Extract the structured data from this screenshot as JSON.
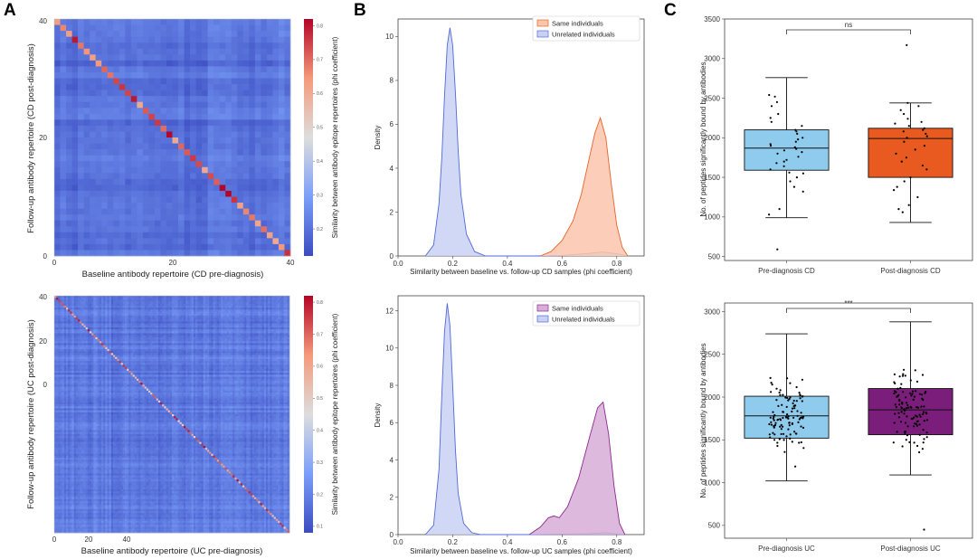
{
  "panels": {
    "a": "A",
    "b": "B",
    "c": "C"
  },
  "chart_data": [
    {
      "id": "A_top",
      "type": "heatmap",
      "size": 40,
      "xlabel": "Baseline antibody repertoire (CD pre-diagnosis)",
      "ylabel": "Follow-up antibody repertoire (CD post-diagnosis)",
      "xticks": [
        "0",
        "20",
        "40"
      ],
      "yticks": [
        "40",
        "20",
        "0"
      ],
      "colorbar_label": "Similarity between antibody epitope repertoires (phi coefficient)",
      "colorbar_ticks": [
        "0.8",
        "0.7",
        "0.6",
        "0.5",
        "0.4",
        "0.3",
        "0.2"
      ],
      "value_range": [
        0.12,
        0.82
      ],
      "diagonal_range": [
        0.6,
        0.82
      ],
      "offdiag_typical": 0.2
    },
    {
      "id": "A_bottom",
      "type": "heatmap",
      "size": 120,
      "xlabel": "Baseline antibody repertoire (UC pre-diagnosis)",
      "ylabel": "Follow-up antibody repertoire (UC post-diagnosis)",
      "xticks": [
        "0",
        "20",
        "40"
      ],
      "yticks": [
        "40",
        "20",
        "0"
      ],
      "colorbar_label": "Similarity between antibody epitope repertoires (phi coefficient)",
      "colorbar_ticks": [
        "0.8",
        "0.7",
        "0.6",
        "0.5",
        "0.4",
        "0.3",
        "0.2",
        "0.1"
      ],
      "value_range": [
        0.08,
        0.82
      ],
      "diagonal_range": [
        0.45,
        0.82
      ],
      "offdiag_typical": 0.18
    },
    {
      "id": "B_top",
      "type": "area",
      "xlabel": "Similarity between baseline vs. follow-up CD samples (phi coefficient)",
      "ylabel": "Density",
      "xlim": [
        0.0,
        0.9
      ],
      "ylim": [
        0,
        10.8
      ],
      "xticks": [
        "0.0",
        "0.2",
        "0.4",
        "0.6",
        "0.8"
      ],
      "yticks": [
        "0",
        "2",
        "4",
        "6",
        "8",
        "10"
      ],
      "series": [
        {
          "name": "Same individuals",
          "fill": "#fcc6ad",
          "line": "#e8622a",
          "x": [
            0.52,
            0.56,
            0.6,
            0.64,
            0.67,
            0.7,
            0.72,
            0.74,
            0.76,
            0.78,
            0.8,
            0.82,
            0.84
          ],
          "y": [
            0.0,
            0.2,
            0.7,
            1.6,
            2.8,
            4.5,
            5.6,
            6.3,
            5.4,
            3.3,
            1.4,
            0.4,
            0.0
          ]
        },
        {
          "name": "Unrelated individuals",
          "fill": "#c9d1f3",
          "line": "#5069d8",
          "x": [
            0.1,
            0.13,
            0.15,
            0.16,
            0.17,
            0.18,
            0.19,
            0.2,
            0.21,
            0.22,
            0.23,
            0.25,
            0.28,
            0.32,
            0.5,
            0.6,
            0.7,
            0.75,
            0.8,
            0.84
          ],
          "y": [
            0.0,
            0.5,
            2.4,
            4.5,
            7.3,
            9.6,
            10.4,
            9.6,
            7.4,
            4.8,
            2.8,
            1.0,
            0.2,
            0.0,
            0.0,
            0.02,
            0.12,
            0.18,
            0.1,
            0.0
          ]
        }
      ]
    },
    {
      "id": "B_bottom",
      "type": "area",
      "xlabel": "Similarity between baseline vs. follow-up UC samples (phi coefficient)",
      "ylabel": "Density",
      "xlim": [
        0.0,
        0.9
      ],
      "ylim": [
        0,
        12.8
      ],
      "xticks": [
        "0.0",
        "0.2",
        "0.4",
        "0.6",
        "0.8"
      ],
      "yticks": [
        "0",
        "2",
        "4",
        "6",
        "8",
        "10",
        "12"
      ],
      "series": [
        {
          "name": "Same individuals",
          "fill": "#d8add8",
          "line": "#8b2a8b",
          "x": [
            0.48,
            0.52,
            0.55,
            0.57,
            0.59,
            0.62,
            0.66,
            0.7,
            0.73,
            0.75,
            0.77,
            0.79,
            0.81,
            0.83
          ],
          "y": [
            0.0,
            0.4,
            0.9,
            1.0,
            0.9,
            1.5,
            3.0,
            5.2,
            6.8,
            7.1,
            5.4,
            2.6,
            0.6,
            0.0
          ]
        },
        {
          "name": "Unrelated individuals",
          "fill": "#c9d1f3",
          "line": "#5069d8",
          "x": [
            0.1,
            0.13,
            0.15,
            0.16,
            0.17,
            0.18,
            0.19,
            0.2,
            0.21,
            0.22,
            0.24,
            0.27,
            0.3,
            0.5,
            0.7,
            0.76,
            0.82
          ],
          "y": [
            0.0,
            0.5,
            3.5,
            7.5,
            10.9,
            12.4,
            11.2,
            8.0,
            4.5,
            2.2,
            0.6,
            0.1,
            0.0,
            0.0,
            0.05,
            0.1,
            0.0
          ]
        }
      ]
    },
    {
      "id": "C_top",
      "type": "box",
      "ylabel": "No. of peptides significantly bound by antibodies",
      "ylim": [
        450,
        3500
      ],
      "yticks": [
        "500",
        "1000",
        "1500",
        "2000",
        "2500",
        "3000",
        "3500"
      ],
      "significance": "ns",
      "groups": [
        {
          "label": "Pre-diagnosis CD",
          "color": "#8ecbec",
          "whisker_low": 990,
          "q1": 1590,
          "median": 1870,
          "q3": 2100,
          "whisker_high": 2760,
          "points": [
            590,
            1030,
            1100,
            1320,
            1380,
            1450,
            1500,
            1550,
            1560,
            1600,
            1640,
            1680,
            1700,
            1720,
            1760,
            1800,
            1820,
            1840,
            1860,
            1880,
            1900,
            1920,
            1950,
            1980,
            2000,
            2050,
            2080,
            2100,
            2150,
            2200,
            2250,
            2300,
            2400,
            2450,
            2520,
            2540
          ]
        },
        {
          "label": "Post-diagnosis CD",
          "color": "#e85a1f",
          "whisker_low": 930,
          "q1": 1500,
          "median": 1990,
          "q3": 2120,
          "whisker_high": 2440,
          "points": [
            1060,
            1100,
            1150,
            1250,
            1340,
            1380,
            1450,
            1500,
            1600,
            1650,
            1700,
            1750,
            1800,
            1850,
            1900,
            1950,
            2000,
            2020,
            2050,
            2080,
            2100,
            2120,
            2150,
            2180,
            2200,
            2240,
            2300,
            2350,
            2400,
            2440,
            3170
          ]
        }
      ]
    },
    {
      "id": "C_bottom",
      "type": "box",
      "ylabel": "No. of peptides significantly bound by antibodies",
      "ylim": [
        350,
        3100
      ],
      "yticks": [
        "500",
        "1000",
        "1500",
        "2000",
        "2500",
        "3000"
      ],
      "significance": "***",
      "groups": [
        {
          "label": "Pre-diagnosis UC",
          "color": "#8ecbec",
          "whisker_low": 1020,
          "q1": 1520,
          "median": 1780,
          "q3": 2010,
          "whisker_high": 2740,
          "n_points": 110,
          "seed": 11
        },
        {
          "label": "Post-diagnosis UC",
          "color": "#7b1d7b",
          "whisker_low": 1090,
          "q1": 1560,
          "median": 1850,
          "q3": 2100,
          "whisker_high": 2880,
          "n_points": 110,
          "seed": 29,
          "outliers": [
            450
          ]
        }
      ]
    }
  ]
}
